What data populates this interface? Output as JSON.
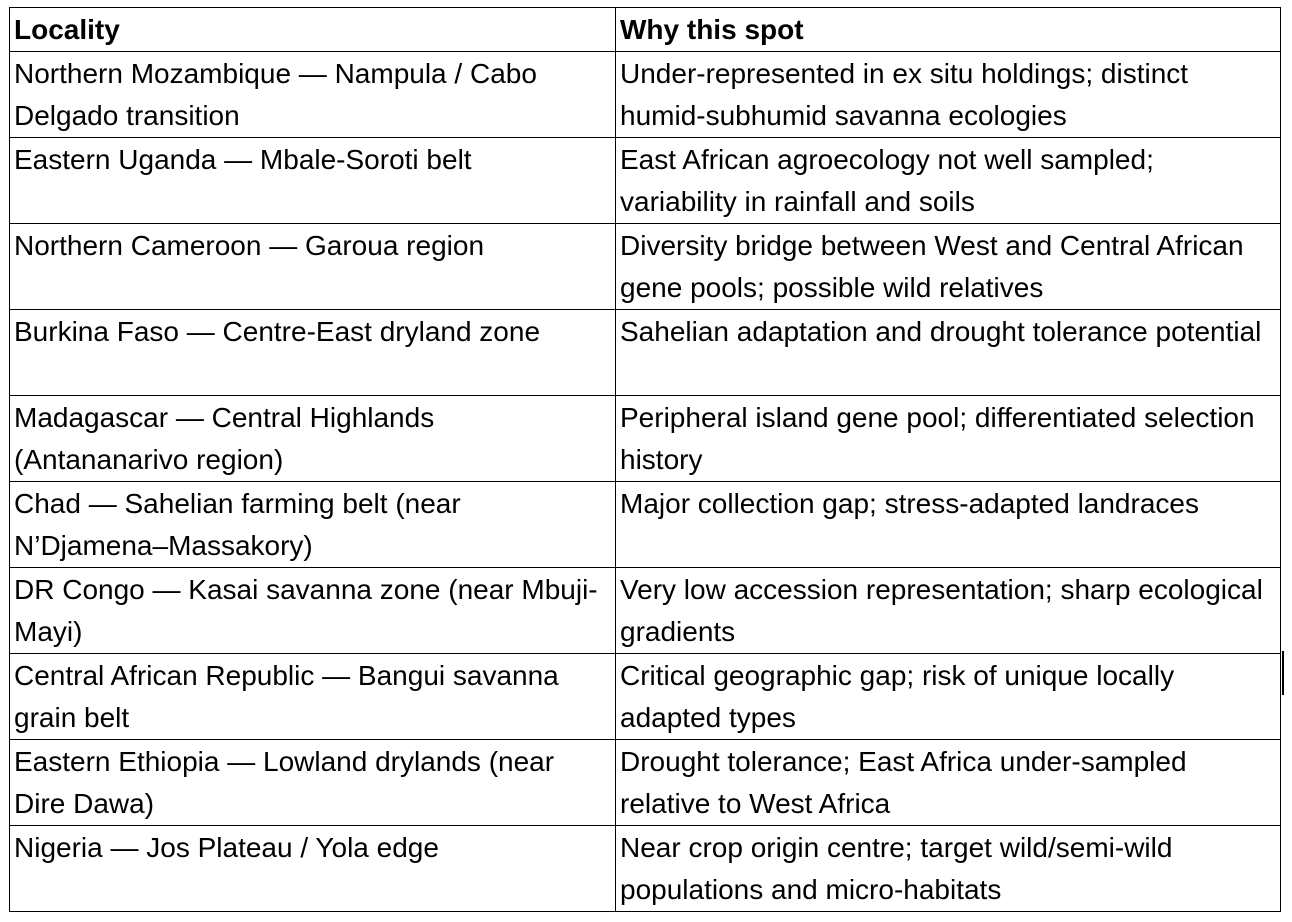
{
  "table": {
    "headers": [
      "Locality",
      "Why this spot"
    ],
    "rows": [
      [
        "Northern Mozambique — Nampula / Cabo Delgado transition",
        "Under-represented in ex situ holdings; distinct humid-subhumid savanna ecologies"
      ],
      [
        "Eastern Uganda — Mbale-Soroti belt",
        "East African agroecology not well sampled; variability in rainfall and soils"
      ],
      [
        "Northern Cameroon — Garoua region",
        "Diversity bridge between West and Central African gene pools; possible wild relatives"
      ],
      [
        "Burkina Faso — Centre-East dryland zone",
        "Sahelian adaptation and drought tolerance potential"
      ],
      [
        "Madagascar — Central Highlands (Antananarivo region)",
        "Peripheral island gene pool; differentiated selection history"
      ],
      [
        "Chad — Sahelian farming belt (near N’Djamena–Massakory)",
        "Major collection gap; stress-adapted landraces"
      ],
      [
        "DR Congo — Kasai savanna zone (near Mbuji-Mayi)",
        "Very low accession representation; sharp ecological gradients"
      ],
      [
        "Central African Republic — Bangui savanna grain belt",
        "Critical geographic gap; risk of unique locally adapted types"
      ],
      [
        "Eastern Ethiopia — Lowland drylands (near Dire Dawa)",
        "Drought tolerance; East Africa under-sampled relative to West Africa"
      ],
      [
        "Nigeria — Jos Plateau / Yola edge",
        "Near crop origin centre; target wild/semi-wild populations and micro-habitats"
      ]
    ]
  }
}
